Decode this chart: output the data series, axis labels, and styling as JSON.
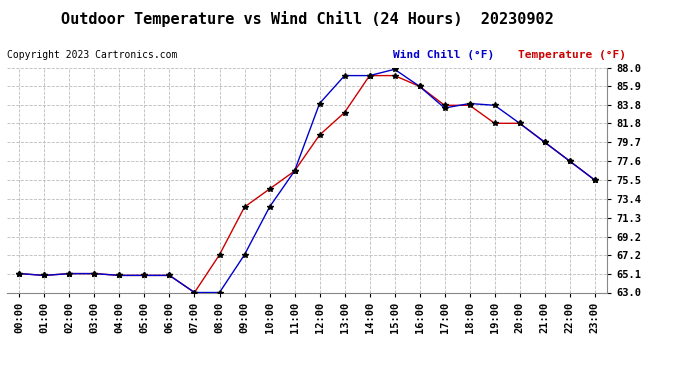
{
  "title": "Outdoor Temperature vs Wind Chill (24 Hours)  20230902",
  "copyright": "Copyright 2023 Cartronics.com",
  "legend_wind_chill": "Wind Chill (°F)",
  "legend_temperature": "Temperature (°F)",
  "x_labels": [
    "00:00",
    "01:00",
    "02:00",
    "03:00",
    "04:00",
    "05:00",
    "06:00",
    "07:00",
    "08:00",
    "09:00",
    "10:00",
    "11:00",
    "12:00",
    "13:00",
    "14:00",
    "15:00",
    "16:00",
    "17:00",
    "18:00",
    "19:00",
    "20:00",
    "21:00",
    "22:00",
    "23:00"
  ],
  "temperature": [
    65.1,
    64.9,
    65.1,
    65.1,
    64.9,
    64.9,
    64.9,
    63.0,
    67.2,
    72.5,
    74.5,
    76.5,
    80.5,
    83.0,
    87.1,
    87.1,
    85.9,
    83.8,
    83.8,
    81.8,
    81.8,
    79.7,
    77.6,
    75.5
  ],
  "wind_chill": [
    65.1,
    64.9,
    65.1,
    65.1,
    64.9,
    64.9,
    64.9,
    63.0,
    63.0,
    67.2,
    72.5,
    76.5,
    84.0,
    87.1,
    87.1,
    87.8,
    85.9,
    83.5,
    84.0,
    83.8,
    81.8,
    79.7,
    77.6,
    75.5
  ],
  "ylim_min": 63.0,
  "ylim_max": 88.0,
  "yticks": [
    63.0,
    65.1,
    67.2,
    69.2,
    71.3,
    73.4,
    75.5,
    77.6,
    79.7,
    81.8,
    83.8,
    85.9,
    88.0
  ],
  "temp_color": "#cc0000",
  "wind_chill_color": "#0000cc",
  "background_color": "#ffffff",
  "grid_color": "#bbbbbb",
  "title_fontsize": 11,
  "tick_fontsize": 7.5
}
